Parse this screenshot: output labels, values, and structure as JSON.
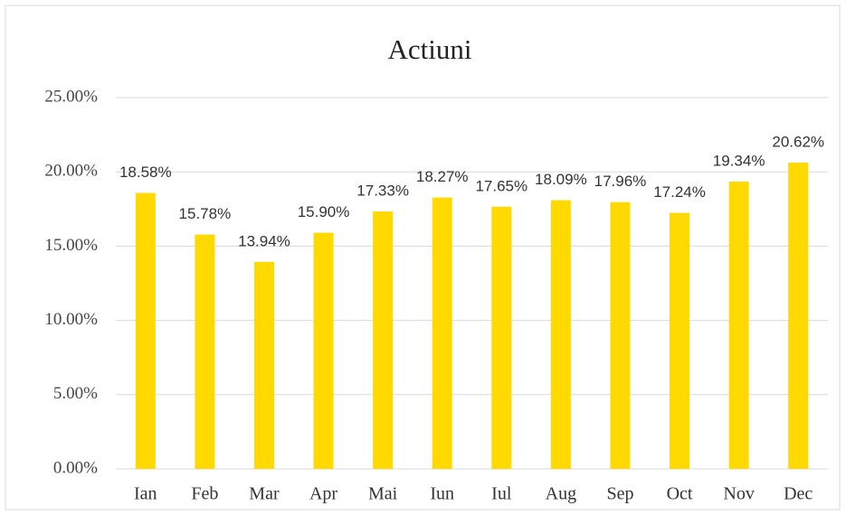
{
  "chart_data": {
    "type": "bar",
    "title": "Actiuni",
    "categories": [
      "Ian",
      "Feb",
      "Mar",
      "Apr",
      "Mai",
      "Iun",
      "Iul",
      "Aug",
      "Sep",
      "Oct",
      "Nov",
      "Dec"
    ],
    "values": [
      18.58,
      15.78,
      13.94,
      15.9,
      17.33,
      18.27,
      17.65,
      18.09,
      17.96,
      17.24,
      19.34,
      20.62
    ],
    "value_labels": [
      "18.58%",
      "15.78%",
      "13.94%",
      "15.90%",
      "17.33%",
      "18.27%",
      "17.65%",
      "18.09%",
      "17.96%",
      "17.24%",
      "19.34%",
      "20.62%"
    ],
    "color": "#ffd900",
    "ylim": [
      0,
      25
    ],
    "yticks": [
      {
        "value": 0,
        "label": "0.00%"
      },
      {
        "value": 5,
        "label": "5.00%"
      },
      {
        "value": 10,
        "label": "10.00%"
      },
      {
        "value": 15,
        "label": "15.00%"
      },
      {
        "value": 20,
        "label": "20.00%"
      },
      {
        "value": 25,
        "label": "25.00%"
      }
    ],
    "grid": true
  }
}
